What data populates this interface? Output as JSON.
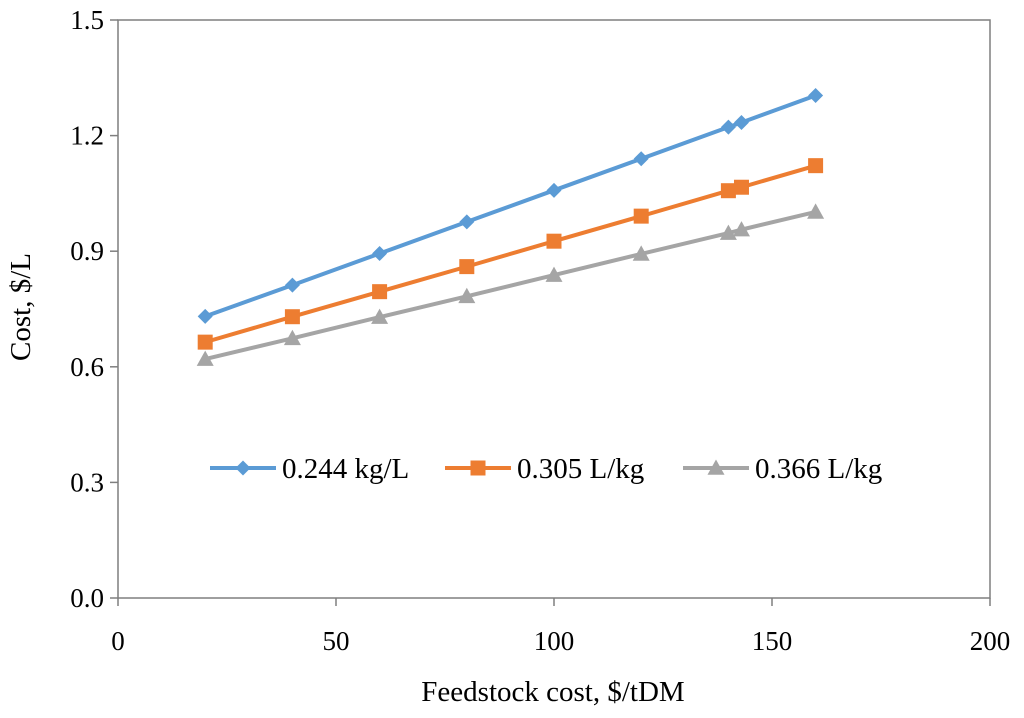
{
  "chart_data": {
    "type": "line",
    "xlabel": "Feedstock cost, $/tDM",
    "ylabel": "Cost, $/L",
    "xlim": [
      0,
      200
    ],
    "ylim": [
      0,
      1.5
    ],
    "x_ticks": [
      "0",
      "50",
      "100",
      "150",
      "200"
    ],
    "y_ticks": [
      "0.0",
      "0.3",
      "0.6",
      "0.9",
      "1.2",
      "1.5"
    ],
    "grid": false,
    "legend_position": "center",
    "series": [
      {
        "name": "0.244 kg/L",
        "color": "#5B9BD5",
        "marker": "diamond",
        "x": [
          20,
          40,
          60,
          80,
          100,
          120,
          140,
          143,
          160
        ],
        "y": [
          0.731,
          0.812,
          0.894,
          0.976,
          1.058,
          1.14,
          1.222,
          1.234,
          1.304
        ]
      },
      {
        "name": "0.305 L/kg",
        "color": "#ED7D31",
        "marker": "square",
        "x": [
          20,
          40,
          60,
          80,
          100,
          120,
          140,
          143,
          160
        ],
        "y": [
          0.664,
          0.73,
          0.795,
          0.86,
          0.926,
          0.991,
          1.057,
          1.066,
          1.122
        ]
      },
      {
        "name": "0.366 L/kg",
        "color": "#A5A5A5",
        "marker": "triangle",
        "x": [
          20,
          40,
          60,
          80,
          100,
          120,
          140,
          143,
          160
        ],
        "y": [
          0.62,
          0.674,
          0.729,
          0.783,
          0.838,
          0.893,
          0.947,
          0.956,
          1.002
        ]
      }
    ]
  }
}
